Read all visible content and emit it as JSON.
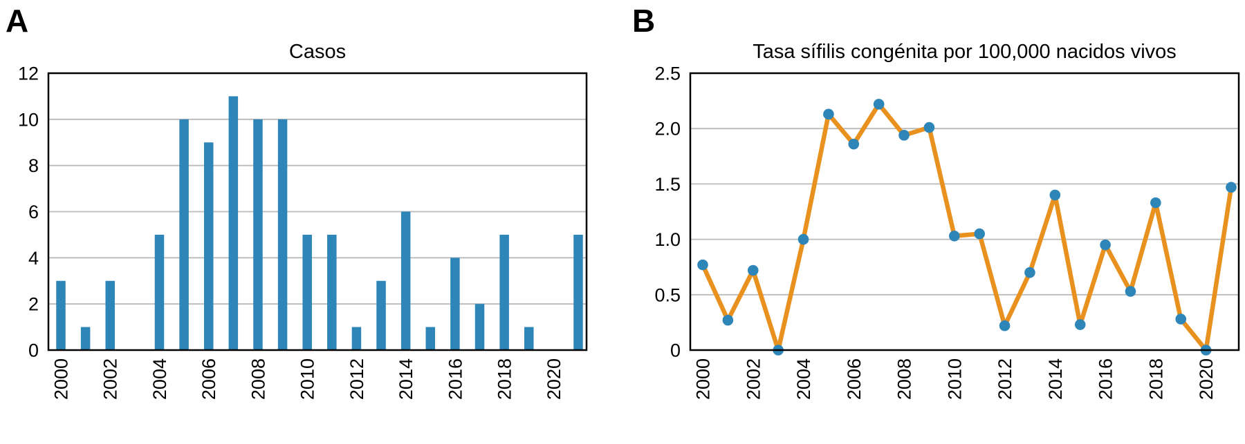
{
  "figure": {
    "background": "#ffffff"
  },
  "style": {
    "grid_color": "#bababa",
    "axis_color": "#000000",
    "text_color": "#000000"
  },
  "chart_data": [
    {
      "type": "bar",
      "panel_label": "A",
      "title": "Casos",
      "x": [
        2000,
        2001,
        2002,
        2003,
        2004,
        2005,
        2006,
        2007,
        2008,
        2009,
        2010,
        2011,
        2012,
        2013,
        2014,
        2015,
        2016,
        2017,
        2018,
        2019,
        2020,
        2021
      ],
      "values": [
        3,
        1,
        3,
        0,
        5,
        10,
        9,
        11,
        10,
        10,
        5,
        5,
        1,
        3,
        6,
        1,
        4,
        2,
        5,
        1,
        0,
        5
      ],
      "xlabel": "",
      "ylabel": "",
      "ylim": [
        0,
        12
      ],
      "y_ticks": [
        0,
        2,
        4,
        6,
        8,
        10,
        12
      ],
      "y_tick_labels": [
        "0",
        "2",
        "4",
        "6",
        "8",
        "10",
        "12"
      ],
      "x_tick_labels": [
        "2000",
        "2002",
        "2004",
        "2006",
        "2008",
        "2010",
        "2012",
        "2014",
        "2016",
        "2018",
        "2020"
      ],
      "grid": true,
      "legend": null,
      "bar_color": "#2e86b8"
    },
    {
      "type": "line",
      "panel_label": "B",
      "title": "Tasa sífilis congénita por 100,000 nacidos vivos",
      "x": [
        2000,
        2001,
        2002,
        2003,
        2004,
        2005,
        2006,
        2007,
        2008,
        2009,
        2010,
        2011,
        2012,
        2013,
        2014,
        2015,
        2016,
        2017,
        2018,
        2019,
        2020,
        2021
      ],
      "values": [
        0.77,
        0.27,
        0.72,
        0,
        1.0,
        2.13,
        1.86,
        2.22,
        1.94,
        2.01,
        1.03,
        1.05,
        0.22,
        0.7,
        1.4,
        0.23,
        0.95,
        0.53,
        1.33,
        0.28,
        0,
        1.47
      ],
      "xlabel": "",
      "ylabel": "",
      "ylim": [
        0,
        2.5
      ],
      "y_ticks": [
        0,
        0.5,
        1.0,
        1.5,
        2.0,
        2.5
      ],
      "y_tick_labels": [
        "0",
        "0.5",
        "1.0",
        "1.5",
        "2.0",
        "2.5"
      ],
      "x_tick_labels": [
        "2000",
        "2002",
        "2004",
        "2006",
        "2008",
        "2010",
        "2012",
        "2014",
        "2016",
        "2018",
        "2020"
      ],
      "grid": true,
      "legend": null,
      "line_color": "#e8911f",
      "marker_color": "#2e86b8"
    }
  ]
}
